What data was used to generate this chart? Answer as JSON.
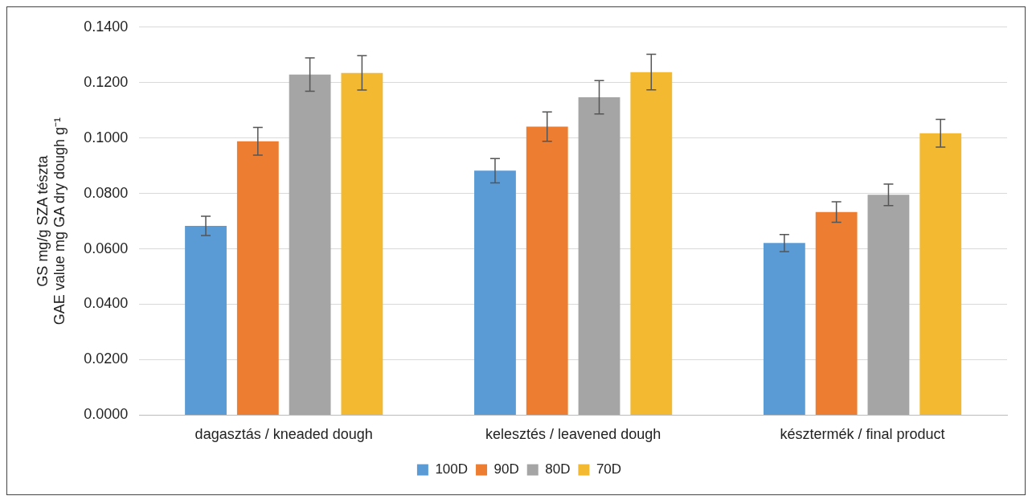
{
  "chart_data": {
    "type": "bar",
    "ylabel": "GS mg/g SZA tészta\nGAE value mg GA dry dough g⁻¹",
    "categories": [
      "dagasztás / kneaded dough",
      "kelesztés / leavened dough",
      "késztermék / final product"
    ],
    "series": [
      {
        "name": "100D",
        "color": "#5b9bd5",
        "values": [
          0.0683,
          0.0882,
          0.0621
        ],
        "errors": [
          0.0035,
          0.0044,
          0.0031
        ]
      },
      {
        "name": "90D",
        "color": "#ed7d31",
        "values": [
          0.0988,
          0.1041,
          0.0733
        ],
        "errors": [
          0.005,
          0.0053,
          0.0037
        ]
      },
      {
        "name": "80D",
        "color": "#a5a5a5",
        "values": [
          0.1229,
          0.1147,
          0.0795
        ],
        "errors": [
          0.006,
          0.006,
          0.0039
        ]
      },
      {
        "name": "70D",
        "color": "#f2b931",
        "values": [
          0.1235,
          0.1238,
          0.1017
        ],
        "errors": [
          0.0062,
          0.0064,
          0.005
        ]
      }
    ],
    "ylim": [
      0,
      0.14
    ],
    "yticks": [
      {
        "value": 0,
        "label": "0.0000"
      },
      {
        "value": 0.02,
        "label": "0.0200"
      },
      {
        "value": 0.04,
        "label": "0.0400"
      },
      {
        "value": 0.06,
        "label": "0.0600"
      },
      {
        "value": 0.08,
        "label": "0.0800"
      },
      {
        "value": 0.1,
        "label": "0.1000"
      },
      {
        "value": 0.12,
        "label": "0.1200"
      },
      {
        "value": 0.14,
        "label": "0.1400"
      }
    ],
    "grid": "y",
    "legend": "bottom"
  }
}
